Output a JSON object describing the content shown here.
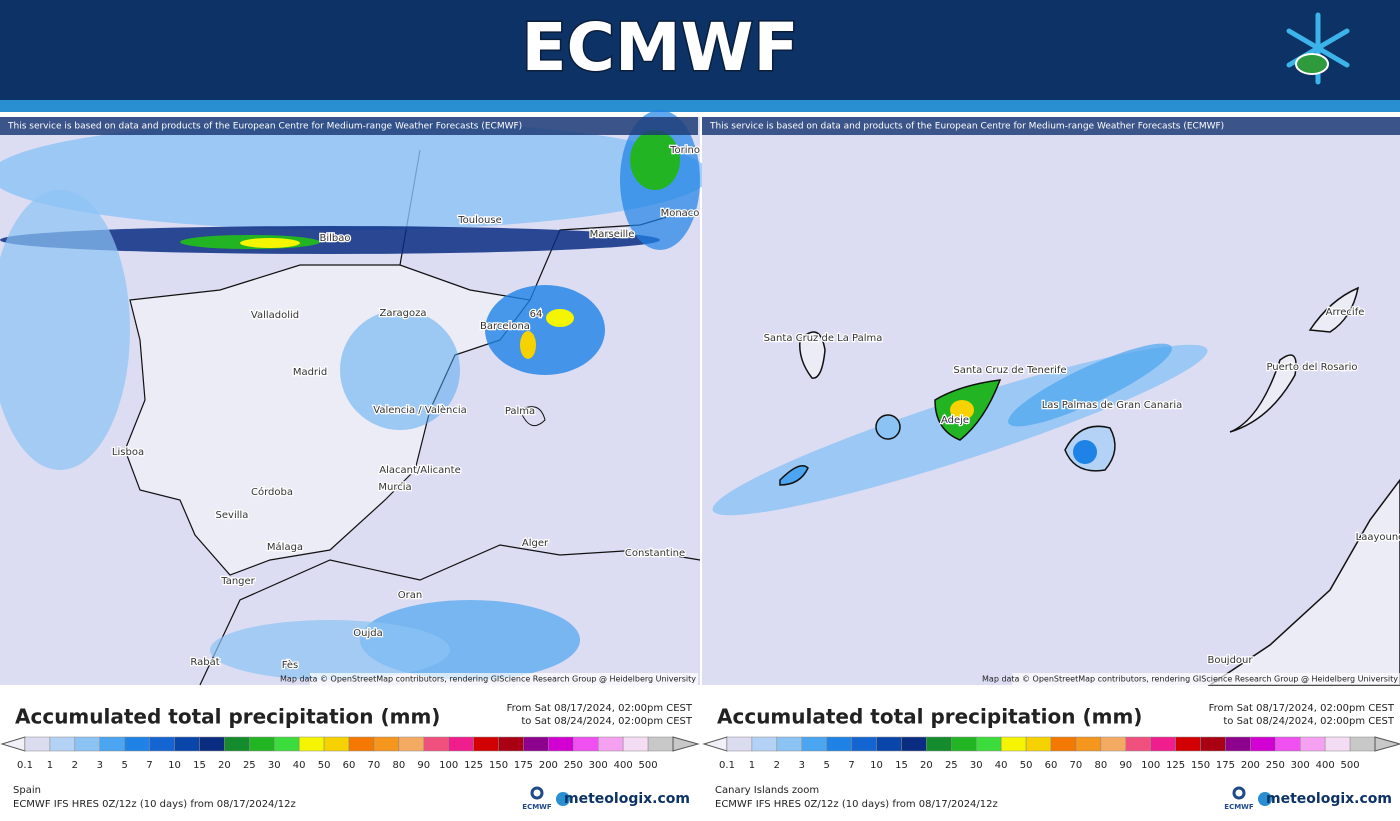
{
  "header": {
    "title": "ECMWF"
  },
  "scale": {
    "levels": [
      0.1,
      1,
      2,
      3,
      5,
      7,
      10,
      15,
      20,
      25,
      30,
      40,
      50,
      60,
      70,
      80,
      90,
      100,
      125,
      150,
      175,
      200,
      250,
      300,
      400,
      500
    ],
    "colors": [
      "#dcdcf0",
      "#b4d2f5",
      "#8cc3f5",
      "#4ba5f0",
      "#1e82e6",
      "#1464d2",
      "#0a46aa",
      "#0a2d82",
      "#148c2d",
      "#23b423",
      "#3cdc3c",
      "#f5f500",
      "#f5d200",
      "#f57800",
      "#f5961e",
      "#f5aa64",
      "#f0507d",
      "#f01e8c",
      "#d20000",
      "#aa0014",
      "#8c008c",
      "#d200d2",
      "#f050f0",
      "#f5a0f0",
      "#f5dcf5",
      "#c8c8c8"
    ]
  },
  "panels": [
    {
      "notice": "This service is based on data and products of the European Centre for Medium-range Weather Forecasts (ECMWF)",
      "attribution": "Map data © OpenStreetMap contributors, rendering GIScience Research Group @ Heidelberg University",
      "places": [
        "Torino",
        "Monaco",
        "Toulouse",
        "Marseille",
        "Bilbao",
        "Valladolid",
        "Zaragoza",
        "Barcelona",
        "64",
        "Madrid",
        "Valencia / València",
        "Palma",
        "Lisboa",
        "Alacant/Alicante",
        "Murcia",
        "Córdoba",
        "Sevilla",
        "Málaga",
        "Alger",
        "Constantine",
        "Tanger",
        "Oran",
        "Oujda",
        "Rabat",
        "Fès"
      ],
      "title": "Accumulated total precipitation (mm)",
      "period": [
        "From Sat 08/17/2024, 02:00pm CEST",
        "to Sat 08/24/2024, 02:00pm CEST"
      ],
      "region": "Spain",
      "model": "ECMWF IFS HRES 0Z/12z (10 days) from 08/17/2024/12z",
      "logo": "ECMWF",
      "brand": "meteologix.com"
    },
    {
      "notice": "This service is based on data and products of the European Centre for Medium-range Weather Forecasts (ECMWF)",
      "attribution": "Map data © OpenStreetMap contributors, rendering GIScience Research Group @ Heidelberg University",
      "places": [
        "Santa Cruz de La Palma",
        "Santa Cruz de Tenerife",
        "Adeje",
        "Las Palmas de Gran Canaria",
        "Puerto del Rosario",
        "Arrecife",
        "Laayoune",
        "Boujdour"
      ],
      "title": "Accumulated total precipitation (mm)",
      "period": [
        "From Sat 08/17/2024, 02:00pm CEST",
        "to Sat 08/24/2024, 02:00pm CEST"
      ],
      "region": "Canary Islands zoom",
      "model": "ECMWF IFS HRES 0Z/12z (10 days) from 08/17/2024/12z",
      "logo": "ECMWF",
      "brand": "meteologix.com"
    }
  ]
}
